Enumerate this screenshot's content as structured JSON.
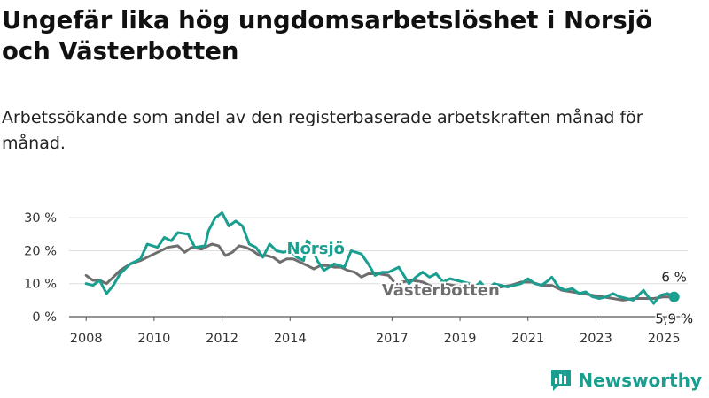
{
  "header": {
    "title": "Ungefär lika hög ungdomsarbetslöshet i Norsjö och Västerbotten",
    "subtitle": "Arbetssökande som andel av den registerbaserade arbetskraften månad för månad."
  },
  "brand": {
    "name": "Newsworthy",
    "color": "#1a9e8f"
  },
  "chart_data": {
    "type": "line",
    "x_unit": "year",
    "xlim": [
      2007.5,
      2025.7
    ],
    "ylim": [
      0,
      33
    ],
    "yticks": [
      0,
      10,
      20,
      30
    ],
    "ytick_labels": [
      "0 %",
      "10 %",
      "20 %",
      "30 %"
    ],
    "xticks": [
      2008,
      2010,
      2012,
      2014,
      2017,
      2019,
      2021,
      2023,
      2025
    ],
    "xtick_labels": [
      "2008",
      "2010",
      "2012",
      "2014",
      "2017",
      "2019",
      "2021",
      "2023",
      "2025"
    ],
    "grid": true,
    "series": [
      {
        "name": "Norsjö",
        "color": "#1a9e8f",
        "end_label": "6 %",
        "points": [
          [
            2008.0,
            10
          ],
          [
            2008.2,
            9.5
          ],
          [
            2008.4,
            11
          ],
          [
            2008.6,
            7
          ],
          [
            2008.8,
            9.5
          ],
          [
            2009.0,
            13
          ],
          [
            2009.3,
            16
          ],
          [
            2009.6,
            17.5
          ],
          [
            2009.8,
            22
          ],
          [
            2010.1,
            21
          ],
          [
            2010.3,
            24
          ],
          [
            2010.5,
            23
          ],
          [
            2010.7,
            25.5
          ],
          [
            2011.0,
            25
          ],
          [
            2011.2,
            21
          ],
          [
            2011.5,
            21.5
          ],
          [
            2011.6,
            26
          ],
          [
            2011.8,
            30
          ],
          [
            2012.0,
            31.5
          ],
          [
            2012.2,
            27.5
          ],
          [
            2012.4,
            29
          ],
          [
            2012.6,
            27.5
          ],
          [
            2012.8,
            22
          ],
          [
            2013.0,
            21
          ],
          [
            2013.2,
            18
          ],
          [
            2013.4,
            22
          ],
          [
            2013.6,
            20
          ],
          [
            2013.8,
            19.5
          ],
          [
            2014.0,
            20
          ],
          [
            2014.2,
            18
          ],
          [
            2014.4,
            17
          ],
          [
            2014.5,
            23
          ],
          [
            2014.6,
            22
          ],
          [
            2014.8,
            17
          ],
          [
            2015.0,
            14
          ],
          [
            2015.3,
            16
          ],
          [
            2015.6,
            15
          ],
          [
            2015.8,
            20
          ],
          [
            2016.1,
            19
          ],
          [
            2016.3,
            16
          ],
          [
            2016.5,
            12.5
          ],
          [
            2016.7,
            13.5
          ],
          [
            2016.9,
            13.5
          ],
          [
            2017.2,
            15
          ],
          [
            2017.5,
            10
          ],
          [
            2017.7,
            12
          ],
          [
            2017.9,
            13.5
          ],
          [
            2018.1,
            12
          ],
          [
            2018.3,
            13
          ],
          [
            2018.5,
            10.5
          ],
          [
            2018.7,
            11.5
          ],
          [
            2018.9,
            11
          ],
          [
            2019.1,
            10.5
          ],
          [
            2019.3,
            10
          ],
          [
            2019.5,
            9.5
          ],
          [
            2019.6,
            10.5
          ],
          [
            2019.8,
            8
          ],
          [
            2020.0,
            10
          ],
          [
            2020.2,
            9.5
          ],
          [
            2020.4,
            9
          ],
          [
            2020.6,
            9.5
          ],
          [
            2020.8,
            10
          ],
          [
            2021.0,
            11.5
          ],
          [
            2021.2,
            10
          ],
          [
            2021.4,
            9.5
          ],
          [
            2021.6,
            11
          ],
          [
            2021.7,
            12
          ],
          [
            2021.9,
            9
          ],
          [
            2022.1,
            8
          ],
          [
            2022.3,
            8.5
          ],
          [
            2022.5,
            7
          ],
          [
            2022.7,
            7.5
          ],
          [
            2022.9,
            6
          ],
          [
            2023.1,
            5.5
          ],
          [
            2023.3,
            6
          ],
          [
            2023.5,
            7
          ],
          [
            2023.7,
            6
          ],
          [
            2023.9,
            5.5
          ],
          [
            2024.1,
            5
          ],
          [
            2024.3,
            7
          ],
          [
            2024.4,
            8
          ],
          [
            2024.5,
            6.5
          ],
          [
            2024.7,
            4
          ],
          [
            2024.9,
            6.5
          ],
          [
            2025.1,
            7
          ],
          [
            2025.3,
            6
          ]
        ]
      },
      {
        "name": "Västerbotten",
        "color": "#6e6e6e",
        "end_label": "5,9 %",
        "points": [
          [
            2008.0,
            12.5
          ],
          [
            2008.2,
            11
          ],
          [
            2008.4,
            11
          ],
          [
            2008.6,
            10
          ],
          [
            2008.8,
            12
          ],
          [
            2009.0,
            14
          ],
          [
            2009.3,
            16
          ],
          [
            2009.6,
            17
          ],
          [
            2009.8,
            18
          ],
          [
            2010.1,
            19.5
          ],
          [
            2010.4,
            21
          ],
          [
            2010.7,
            21.5
          ],
          [
            2010.9,
            19.5
          ],
          [
            2011.1,
            21
          ],
          [
            2011.4,
            20.5
          ],
          [
            2011.7,
            22
          ],
          [
            2011.9,
            21.5
          ],
          [
            2012.1,
            18.5
          ],
          [
            2012.3,
            19.5
          ],
          [
            2012.5,
            21.5
          ],
          [
            2012.7,
            21
          ],
          [
            2012.9,
            20
          ],
          [
            2013.1,
            18.5
          ],
          [
            2013.3,
            18.5
          ],
          [
            2013.5,
            18
          ],
          [
            2013.7,
            16.5
          ],
          [
            2013.9,
            17.5
          ],
          [
            2014.1,
            17.5
          ],
          [
            2014.3,
            16.5
          ],
          [
            2014.5,
            15.5
          ],
          [
            2014.7,
            14.5
          ],
          [
            2014.9,
            15.5
          ],
          [
            2015.1,
            15.5
          ],
          [
            2015.3,
            15
          ],
          [
            2015.5,
            15
          ],
          [
            2015.7,
            14
          ],
          [
            2015.9,
            13.5
          ],
          [
            2016.1,
            12
          ],
          [
            2016.3,
            13
          ],
          [
            2016.6,
            13
          ],
          [
            2016.9,
            12.5
          ],
          [
            2017.1,
            10
          ],
          [
            2017.3,
            10.5
          ],
          [
            2017.6,
            11
          ],
          [
            2017.9,
            10.5
          ],
          [
            2018.1,
            9.5
          ],
          [
            2018.3,
            8.5
          ],
          [
            2018.5,
            10
          ],
          [
            2018.8,
            9.5
          ],
          [
            2019.1,
            9
          ],
          [
            2019.4,
            9.5
          ],
          [
            2019.6,
            9
          ],
          [
            2019.9,
            8.5
          ],
          [
            2020.2,
            9
          ],
          [
            2020.5,
            9.5
          ],
          [
            2020.8,
            10.5
          ],
          [
            2021.1,
            10.5
          ],
          [
            2021.4,
            9.5
          ],
          [
            2021.7,
            9.5
          ],
          [
            2022.0,
            8
          ],
          [
            2022.3,
            7.5
          ],
          [
            2022.6,
            7
          ],
          [
            2022.9,
            6.5
          ],
          [
            2023.2,
            6
          ],
          [
            2023.5,
            5.5
          ],
          [
            2023.8,
            5
          ],
          [
            2024.1,
            5.5
          ],
          [
            2024.4,
            5.5
          ],
          [
            2024.7,
            5.5
          ],
          [
            2025.0,
            6
          ],
          [
            2025.3,
            5.9
          ]
        ]
      }
    ]
  }
}
